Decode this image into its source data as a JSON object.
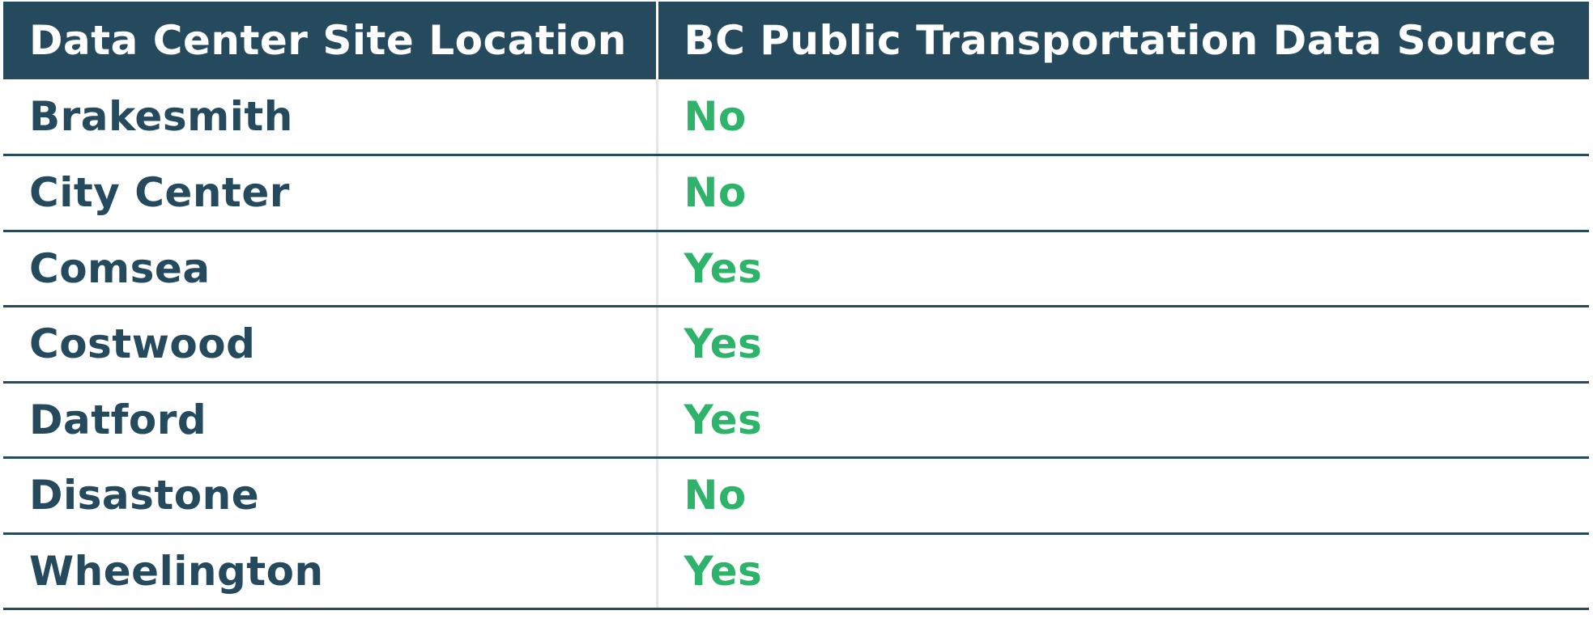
{
  "table": {
    "headers": {
      "location": "Data Center Site Location",
      "source": "BC Public Transportation Data Source"
    },
    "rows": [
      {
        "location": "Brakesmith",
        "value": "No"
      },
      {
        "location": "City Center",
        "value": "No"
      },
      {
        "location": "Comsea",
        "value": "Yes"
      },
      {
        "location": "Costwood",
        "value": "Yes"
      },
      {
        "location": "Datford",
        "value": "Yes"
      },
      {
        "location": "Disastone",
        "value": "No"
      },
      {
        "location": "Wheelington",
        "value": "Yes"
      }
    ],
    "colors": {
      "header_bg": "#264a5d",
      "header_text": "#ffffff",
      "location_text": "#264a5d",
      "value_text": "#2eb36b",
      "row_divider": "#264a5d"
    }
  }
}
